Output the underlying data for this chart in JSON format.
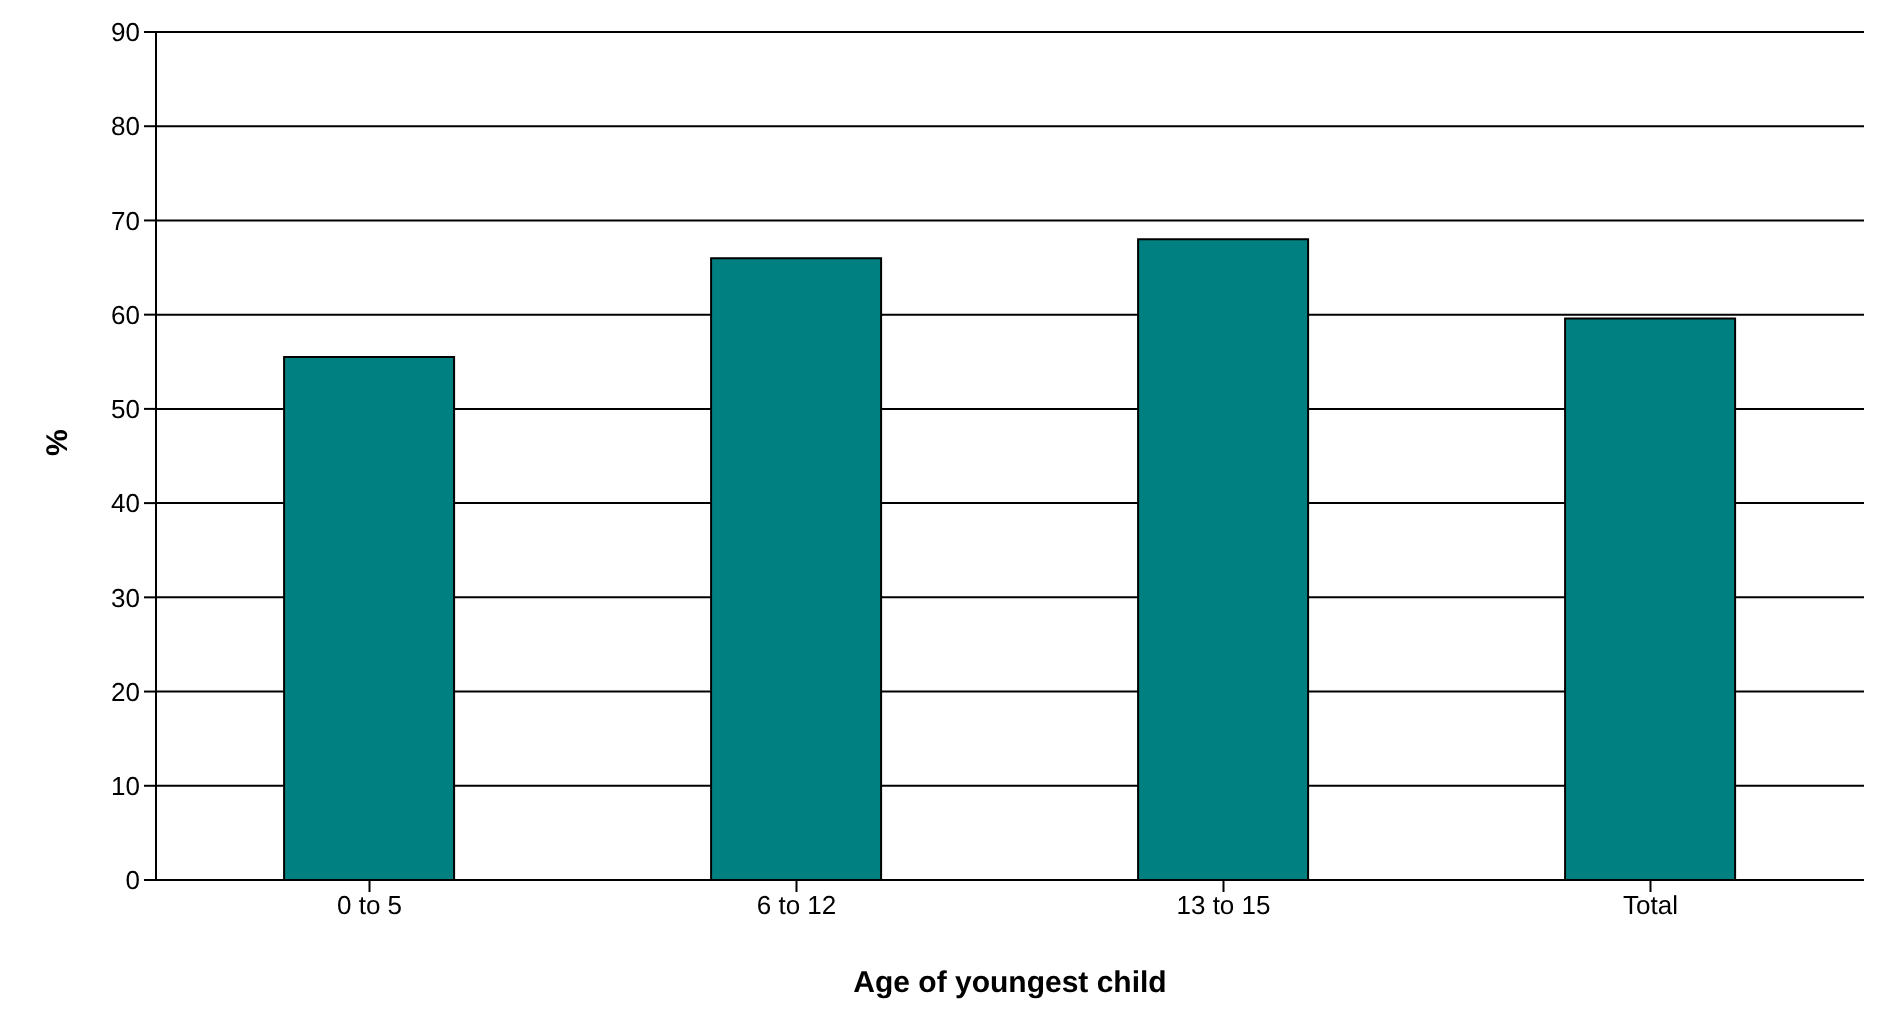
{
  "chart_data": {
    "type": "bar",
    "xlabel": "Age of youngest child",
    "ylabel": "%",
    "categories": [
      "0 to 5",
      "6 to 12",
      "13 to 15",
      "Total"
    ],
    "values": [
      55.5,
      66,
      68,
      59.6
    ],
    "color": "#008080",
    "ylim": [
      0,
      90
    ],
    "yticks": [
      0,
      10,
      20,
      30,
      40,
      50,
      60,
      70,
      80,
      90
    ],
    "grid": "y",
    "legend": false
  }
}
